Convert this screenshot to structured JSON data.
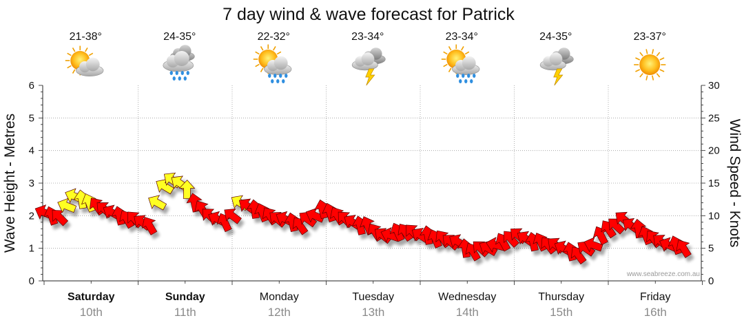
{
  "chart_data": {
    "type": "line",
    "title": "7 day wind & wave forecast for Patrick",
    "ylabel_left": "Wave Height - Metres",
    "ylabel_right": "Wind Speed - Knots",
    "ylim_left": [
      0,
      6
    ],
    "ylim_right": [
      0,
      30
    ],
    "yticks_left": [
      "0",
      "1",
      "2",
      "3",
      "4",
      "5",
      "6"
    ],
    "yticks_right": [
      "0",
      "5",
      "10",
      "15",
      "20",
      "25",
      "30"
    ],
    "grid": true,
    "credit": "www.seabreeze.com.au",
    "days": [
      {
        "name": "Saturday",
        "date": "10th",
        "bold": true,
        "temp": "21-38°",
        "icon": "sun-cloud-icon"
      },
      {
        "name": "Sunday",
        "date": "11th",
        "bold": true,
        "temp": "24-35°",
        "icon": "rain-cloud-icon"
      },
      {
        "name": "Monday",
        "date": "12th",
        "bold": false,
        "temp": "22-32°",
        "icon": "sun-shower-icon"
      },
      {
        "name": "Tuesday",
        "date": "13th",
        "bold": false,
        "temp": "23-34°",
        "icon": "storm-cloud-icon"
      },
      {
        "name": "Wednesday",
        "date": "14th",
        "bold": false,
        "temp": "23-34°",
        "icon": "sun-shower-icon"
      },
      {
        "name": "Thursday",
        "date": "15th",
        "bold": false,
        "temp": "24-35°",
        "icon": "storm-cloud-icon"
      },
      {
        "name": "Friday",
        "date": "16th",
        "bold": false,
        "temp": "23-37°",
        "icon": "sun-icon"
      }
    ],
    "wind_series": {
      "name": "Wind",
      "x_days": [
        0.0,
        0.08,
        0.16,
        0.24,
        0.32,
        0.4,
        0.48,
        0.56,
        0.64,
        0.72,
        0.8,
        0.88,
        0.96,
        1.04,
        1.12,
        1.2,
        1.28,
        1.36,
        1.44,
        1.52,
        1.6,
        1.68,
        1.76,
        1.84,
        1.92,
        2.0,
        2.08,
        2.16,
        2.24,
        2.32,
        2.4,
        2.48,
        2.56,
        2.64,
        2.72,
        2.8,
        2.88,
        2.96,
        3.04,
        3.12,
        3.2,
        3.28,
        3.36,
        3.44,
        3.52,
        3.6,
        3.68,
        3.76,
        3.84,
        3.92,
        4.0,
        4.08,
        4.16,
        4.24,
        4.32,
        4.4,
        4.48,
        4.56,
        4.64,
        4.72,
        4.8,
        4.88,
        4.96,
        5.04,
        5.12,
        5.2,
        5.28,
        5.36,
        5.44,
        5.52,
        5.6,
        5.68,
        5.76,
        5.84,
        5.92,
        6.0,
        6.08,
        6.16,
        6.24,
        6.32,
        6.4,
        6.48,
        6.56,
        6.64,
        6.72,
        6.8
      ],
      "knots": [
        10.5,
        10,
        9.8,
        11.5,
        13,
        12.5,
        12,
        11.5,
        11,
        10.5,
        10,
        9.5,
        9.5,
        9,
        8.5,
        12,
        14.5,
        15.5,
        15,
        14,
        12,
        11,
        10,
        9.5,
        9,
        10,
        12,
        11.5,
        11,
        10.5,
        10,
        9.5,
        9.5,
        9,
        8.5,
        9.5,
        10,
        11,
        10.5,
        10,
        9.5,
        9,
        8.5,
        8.5,
        7.5,
        7,
        7,
        7.5,
        7.5,
        7.5,
        7,
        7,
        6.5,
        6.5,
        6,
        6,
        5,
        4.5,
        5,
        5,
        5.5,
        6,
        6.5,
        7,
        6.5,
        6,
        6,
        5.5,
        5.5,
        5,
        4.5,
        4,
        5,
        5.5,
        7,
        8,
        8.5,
        9.5,
        8.5,
        8,
        7,
        6.5,
        6,
        5.5,
        5.5,
        5
      ],
      "strong": [
        false,
        false,
        false,
        true,
        true,
        true,
        true,
        false,
        false,
        false,
        false,
        false,
        false,
        false,
        false,
        true,
        true,
        true,
        true,
        true,
        false,
        false,
        false,
        false,
        false,
        false,
        true,
        false,
        false,
        false,
        false,
        false,
        false,
        false,
        false,
        false,
        false,
        false,
        false,
        false,
        false,
        false,
        false,
        false,
        false,
        false,
        false,
        false,
        false,
        false,
        false,
        false,
        false,
        false,
        false,
        false,
        false,
        false,
        false,
        false,
        false,
        false,
        false,
        false,
        false,
        false,
        false,
        false,
        false,
        false,
        false,
        false,
        false,
        false,
        false,
        false,
        false,
        false,
        false,
        false,
        false,
        false,
        false,
        false,
        false,
        false
      ]
    }
  }
}
